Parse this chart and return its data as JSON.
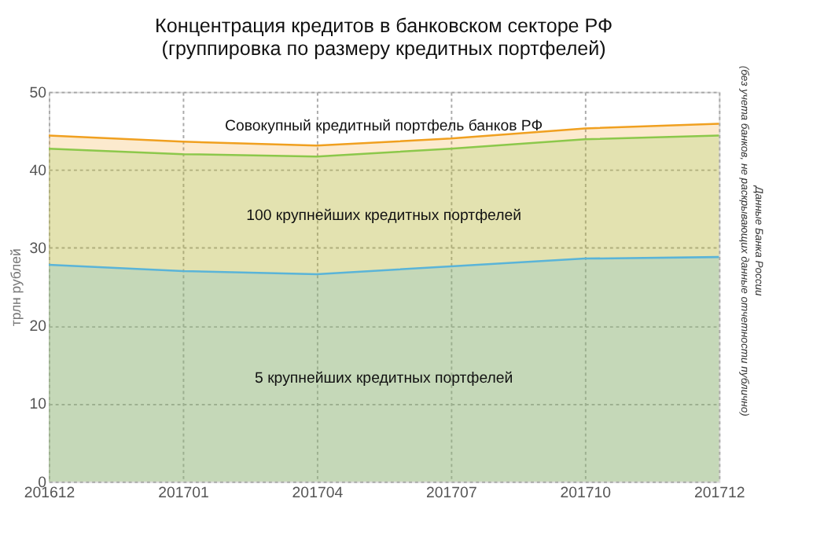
{
  "chart_data": {
    "type": "area",
    "title": [
      "Концентрация кредитов в банковском секторе РФ",
      "(группировка по размеру кредитных портфелей)"
    ],
    "ylabel": "трлн рублей",
    "categories": [
      "201612",
      "201701",
      "201704",
      "201707",
      "201710",
      "201712"
    ],
    "series": [
      {
        "name": "Совокупный кредитный портфель банков РФ",
        "color": "#f0a020",
        "values": [
          44.4,
          43.6,
          43.1,
          44.0,
          45.3,
          45.9
        ]
      },
      {
        "name": "100 крупнейших кредитных портфелей",
        "color": "#8cc84b",
        "values": [
          42.7,
          42.0,
          41.7,
          42.7,
          43.9,
          44.4
        ]
      },
      {
        "name": "5 крупнейших кредитных портфелей",
        "color": "#5ab4d8",
        "values": [
          27.8,
          27.0,
          26.6,
          27.6,
          28.6,
          28.8
        ]
      }
    ],
    "ylim": [
      0,
      50
    ],
    "yticks": [
      0,
      10,
      20,
      30,
      40,
      50
    ],
    "grid": true,
    "annotations": [
      "Данные Банка России",
      "(без учета банков, не раскрывающих данные отчетности публично)"
    ]
  }
}
